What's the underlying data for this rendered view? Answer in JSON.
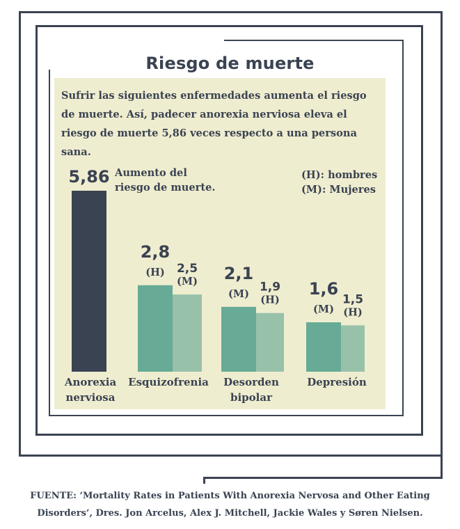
{
  "chart_data": {
    "type": "bar",
    "title": "Riesgo de muerte",
    "subtitle": "Sufrir las siguientes enfermedades aumenta el riesgo de muerte. Así, padecer anorexia nerviosa eleva el riesgo de muerte 5,86 veces respecto a una persona sana.",
    "annotation": "Aumento del riesgo de muerte.",
    "legend": [
      "(H): hombres",
      "(M): Mujeres"
    ],
    "categories": [
      {
        "label_lines": [
          "Anorexia",
          "nerviosa"
        ]
      },
      {
        "label_lines": [
          "Esquizofrenia"
        ]
      },
      {
        "label_lines": [
          "Desorden",
          "bipolar"
        ]
      },
      {
        "label_lines": [
          "Depresión"
        ]
      }
    ],
    "bars": [
      {
        "category": 0,
        "value": 5.86,
        "value_label": "5,86",
        "sex": "",
        "color": "#3a4352"
      },
      {
        "category": 1,
        "value": 2.8,
        "value_label": "2,8",
        "sex": "(H)",
        "color": "#67ab96"
      },
      {
        "category": 1,
        "value": 2.5,
        "value_label": "2,5",
        "sex": "(M)",
        "color": "#98c1aa"
      },
      {
        "category": 2,
        "value": 2.1,
        "value_label": "2,1",
        "sex": "(M)",
        "color": "#67ab96"
      },
      {
        "category": 2,
        "value": 1.9,
        "value_label": "1,9",
        "sex": "(H)",
        "color": "#98c1aa"
      },
      {
        "category": 3,
        "value": 1.6,
        "value_label": "1,6",
        "sex": "(M)",
        "color": "#67ab96"
      },
      {
        "category": 3,
        "value": 1.5,
        "value_label": "1,5",
        "sex": "(H)",
        "color": "#98c1aa"
      }
    ],
    "ylim": [
      0,
      5.86
    ],
    "grid": false
  },
  "source": {
    "line1": "FUENTE: ‘Mortality Rates in Patients With Anorexia Nervosa and Other Eating",
    "line2": "Disorders’, Dres. Jon Arcelus, Alex J. Mitchell, Jackie Wales y Søren Nielsen."
  }
}
